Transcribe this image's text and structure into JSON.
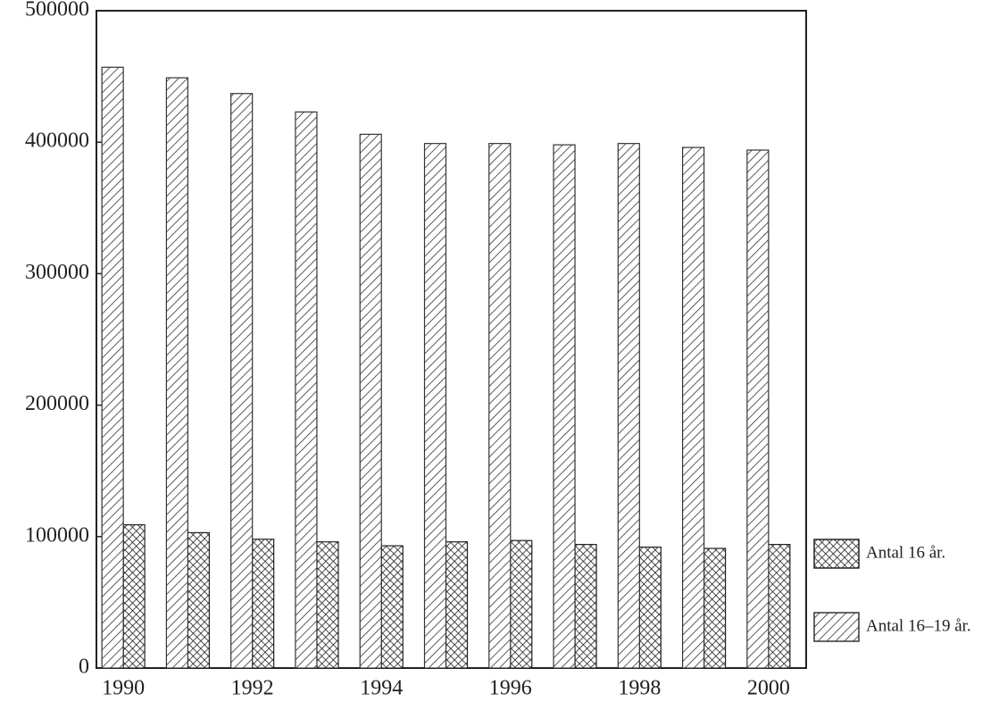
{
  "chart_data": {
    "type": "bar",
    "categories": [
      "1990",
      null,
      "1992",
      null,
      "1994",
      null,
      "1996",
      null,
      "1998",
      null,
      "2000"
    ],
    "series": [
      {
        "name": "Antal 16 år.",
        "color": "#222222",
        "values": [
          109000,
          103000,
          98000,
          96000,
          93000,
          96000,
          97000,
          94000,
          92000,
          91000,
          94000
        ]
      },
      {
        "name": "Antal 16–19 år.",
        "color": "#333333",
        "values": [
          457000,
          449000,
          437000,
          423000,
          406000,
          399000,
          399000,
          398000,
          399000,
          396000,
          394000
        ]
      }
    ],
    "ylim": [
      0,
      500000
    ],
    "yticks": [
      0,
      100000,
      200000,
      300000,
      400000,
      500000
    ]
  }
}
